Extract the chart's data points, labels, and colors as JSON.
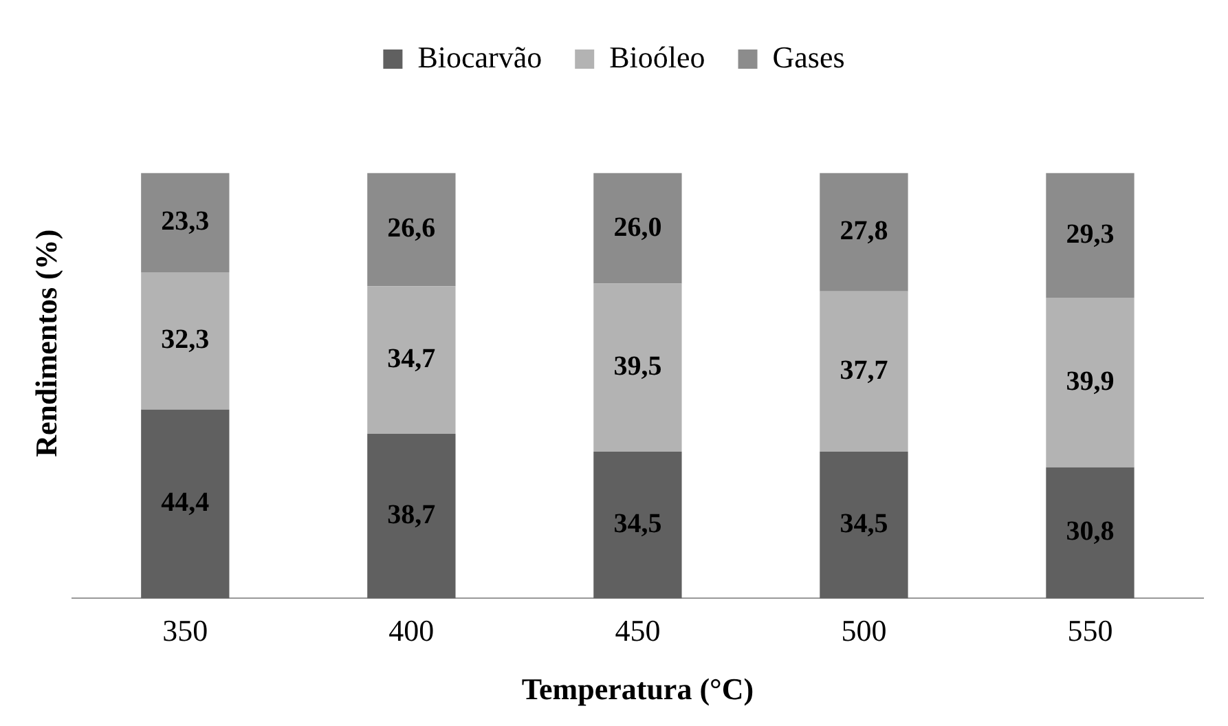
{
  "chart_data": {
    "type": "bar",
    "stacked": true,
    "xlabel": "Temperatura (°C)",
    "ylabel": "Rendimentos (%)",
    "legend": "top",
    "grid": false,
    "tick_labels": "x",
    "categories": [
      "350",
      "400",
      "450",
      "500",
      "550"
    ],
    "series": [
      {
        "name": "Biocarvão",
        "color": "#606060",
        "values": [
          44.4,
          38.7,
          34.5,
          34.5,
          30.8
        ],
        "value_labels": [
          "44,4",
          "38,7",
          "34,5",
          "34,5",
          "30,8"
        ]
      },
      {
        "name": "Bioóleo",
        "color": "#b3b3b3",
        "values": [
          32.3,
          34.7,
          39.5,
          37.7,
          39.9
        ],
        "value_labels": [
          "32,3",
          "34,7",
          "39,5",
          "37,7",
          "39,9"
        ]
      },
      {
        "name": "Gases",
        "color": "#8c8c8c",
        "values": [
          23.3,
          26.6,
          26.0,
          27.8,
          29.3
        ],
        "value_labels": [
          "23,3",
          "26,6",
          "26,0",
          "27,8",
          "29,3"
        ]
      }
    ]
  }
}
